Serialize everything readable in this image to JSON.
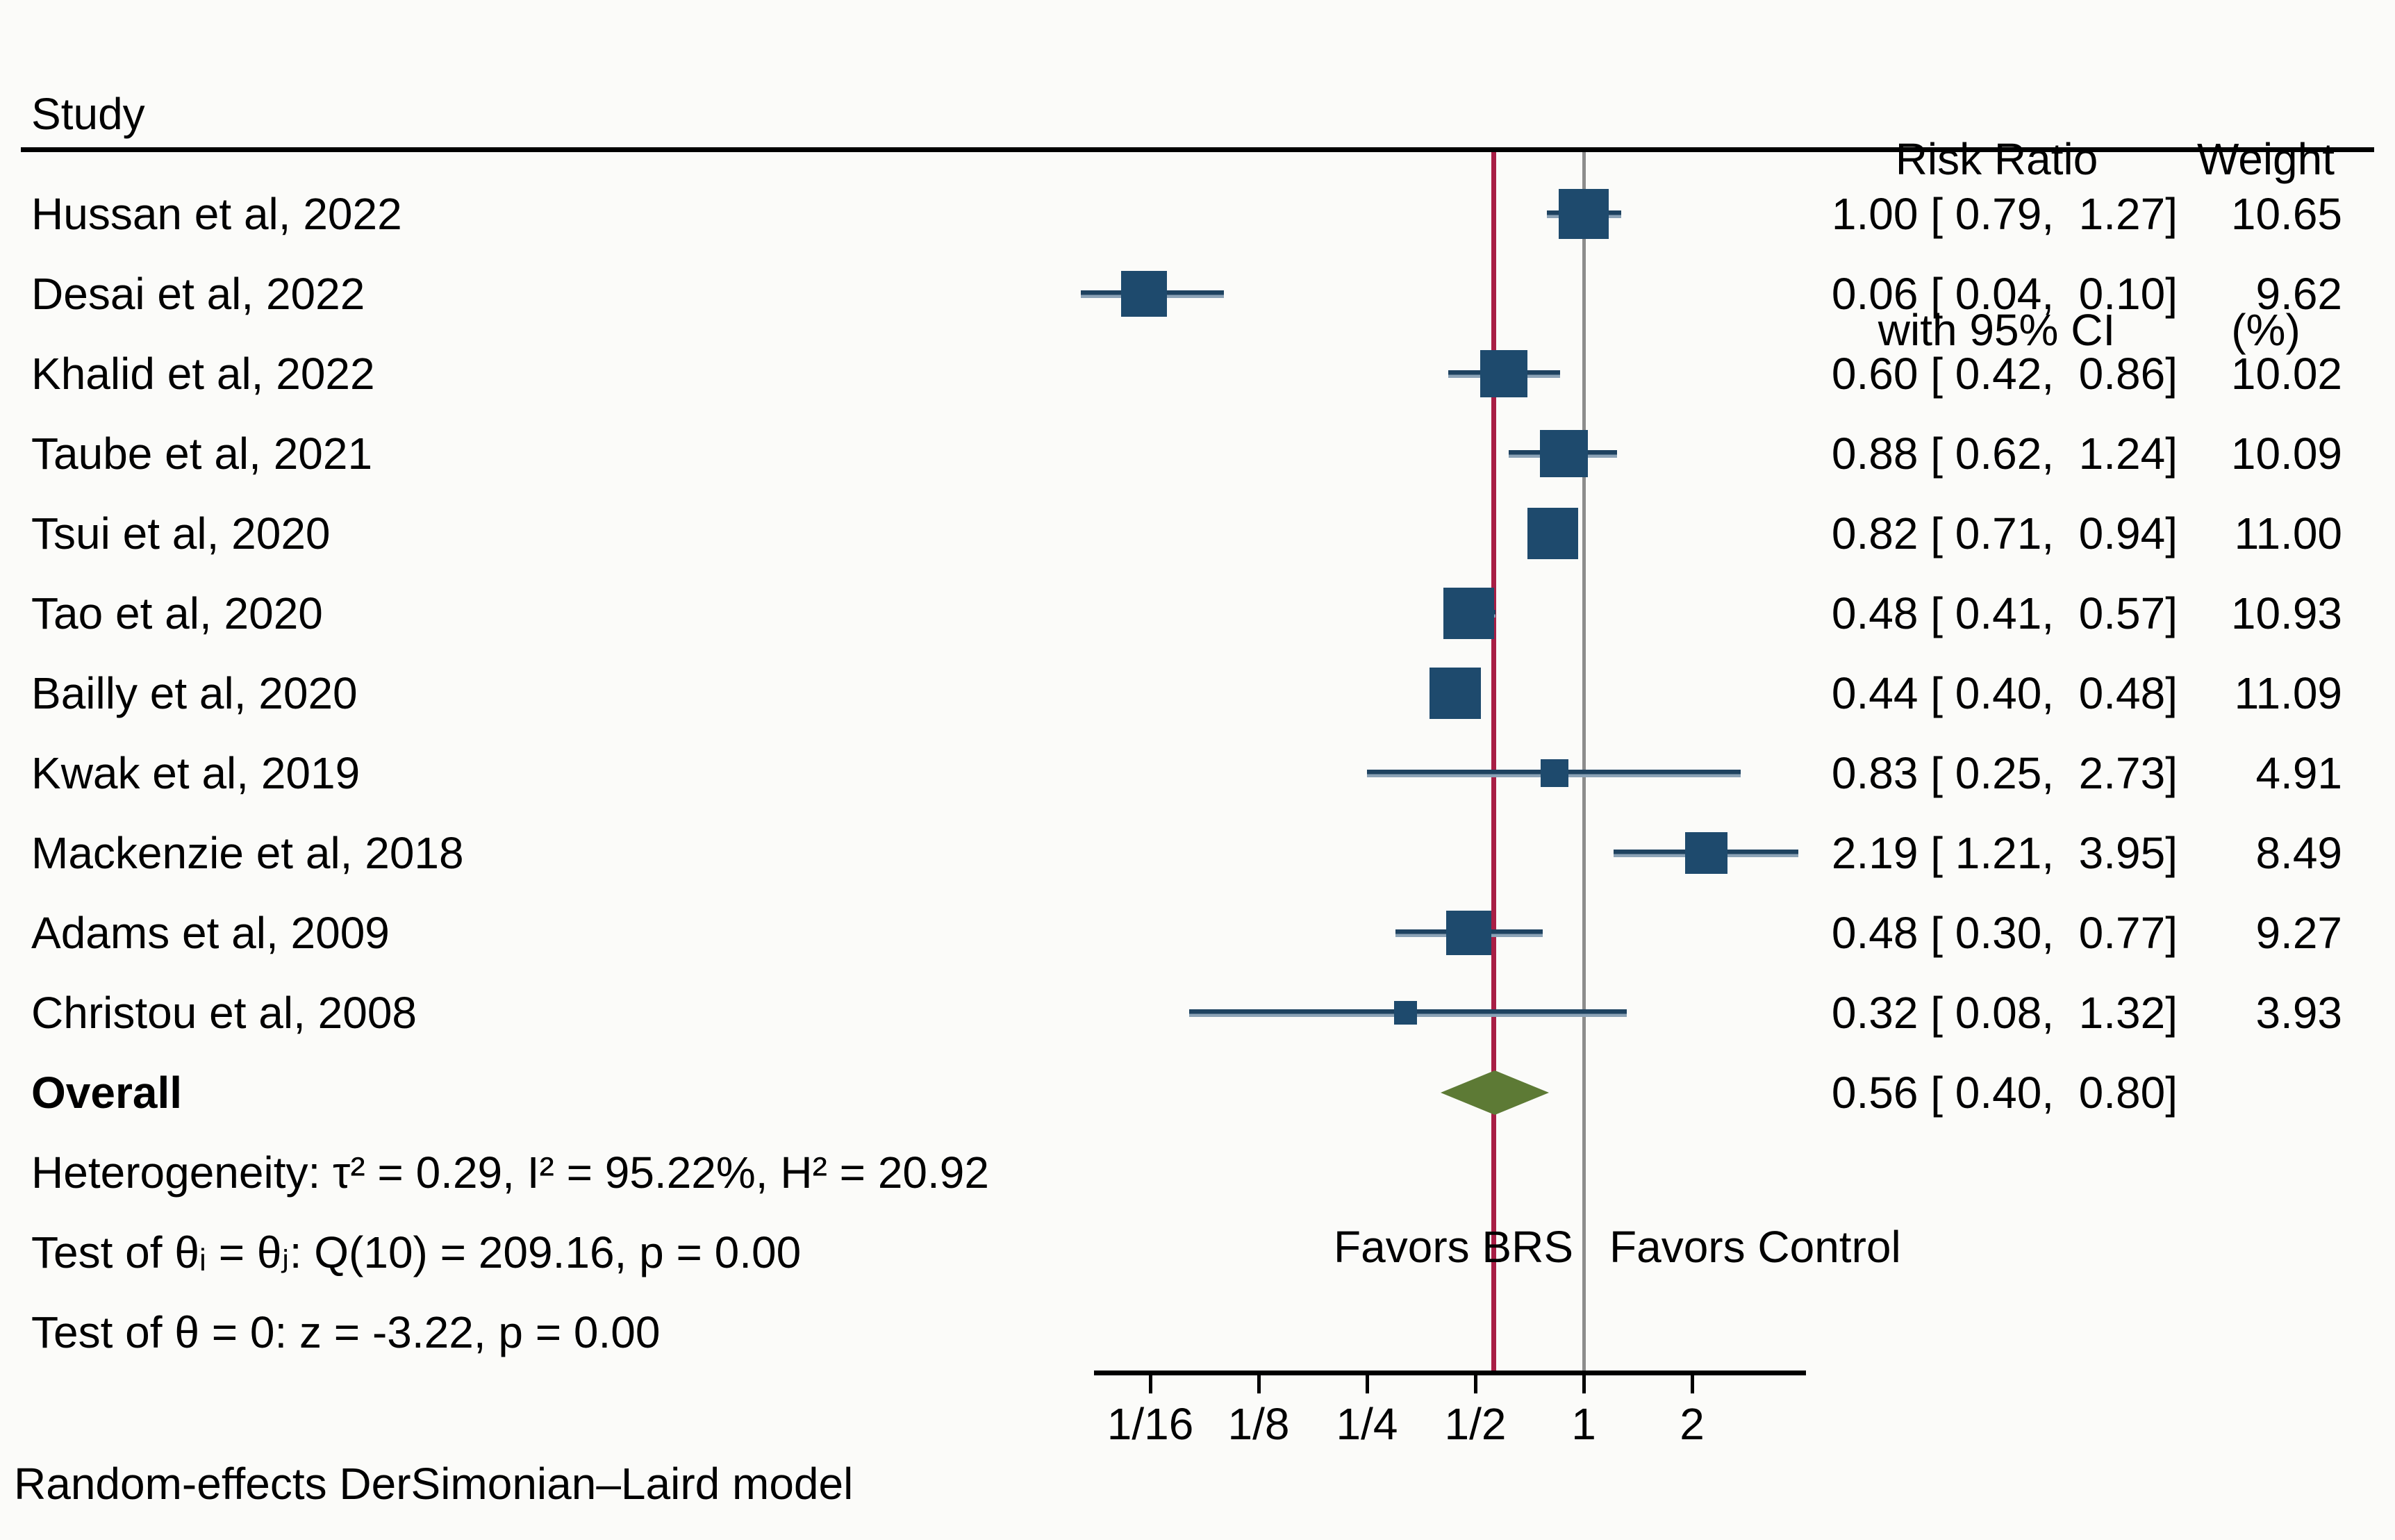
{
  "header": {
    "study_col": "Study",
    "rr_col_line1": "Risk Ratio",
    "rr_col_line2": "with 95% CI",
    "weight_col_line1": "Weight",
    "weight_col_line2": "(%)"
  },
  "chart_data": {
    "type": "forest",
    "effect_measure": "Risk Ratio",
    "x_scale": "log2",
    "x_ticks": [
      "1/16",
      "1/8",
      "1/4",
      "1/2",
      "1",
      "2"
    ],
    "x_tick_values": [
      0.0625,
      0.125,
      0.25,
      0.5,
      1,
      2
    ],
    "reference_line_value": 1,
    "overall_line_value": 0.56,
    "studies": [
      {
        "name": "Hussan et al, 2022",
        "rr": 1.0,
        "lo": 0.79,
        "hi": 1.27,
        "weight": 10.65,
        "rr_label": "1.00 [ 0.79,  1.27]",
        "weight_label": "10.65"
      },
      {
        "name": "Desai et al, 2022",
        "rr": 0.06,
        "lo": 0.04,
        "hi": 0.1,
        "weight": 9.62,
        "rr_label": "0.06 [ 0.04,  0.10]",
        "weight_label": "9.62"
      },
      {
        "name": "Khalid et al, 2022",
        "rr": 0.6,
        "lo": 0.42,
        "hi": 0.86,
        "weight": 10.02,
        "rr_label": "0.60 [ 0.42,  0.86]",
        "weight_label": "10.02"
      },
      {
        "name": "Taube et al, 2021",
        "rr": 0.88,
        "lo": 0.62,
        "hi": 1.24,
        "weight": 10.09,
        "rr_label": "0.88 [ 0.62,  1.24]",
        "weight_label": "10.09"
      },
      {
        "name": "Tsui et al, 2020",
        "rr": 0.82,
        "lo": 0.71,
        "hi": 0.94,
        "weight": 11.0,
        "rr_label": "0.82 [ 0.71,  0.94]",
        "weight_label": "11.00"
      },
      {
        "name": "Tao et al, 2020",
        "rr": 0.48,
        "lo": 0.41,
        "hi": 0.57,
        "weight": 10.93,
        "rr_label": "0.48 [ 0.41,  0.57]",
        "weight_label": "10.93"
      },
      {
        "name": "Bailly et al, 2020",
        "rr": 0.44,
        "lo": 0.4,
        "hi": 0.48,
        "weight": 11.09,
        "rr_label": "0.44 [ 0.40,  0.48]",
        "weight_label": "11.09"
      },
      {
        "name": "Kwak et al, 2019",
        "rr": 0.83,
        "lo": 0.25,
        "hi": 2.73,
        "weight": 4.91,
        "rr_label": "0.83 [ 0.25,  2.73]",
        "weight_label": "4.91"
      },
      {
        "name": "Mackenzie et al, 2018",
        "rr": 2.19,
        "lo": 1.21,
        "hi": 3.95,
        "weight": 8.49,
        "rr_label": "2.19 [ 1.21,  3.95]",
        "weight_label": "8.49"
      },
      {
        "name": "Adams et al, 2009",
        "rr": 0.48,
        "lo": 0.3,
        "hi": 0.77,
        "weight": 9.27,
        "rr_label": "0.48 [ 0.30,  0.77]",
        "weight_label": "9.27"
      },
      {
        "name": "Christou et al, 2008",
        "rr": 0.32,
        "lo": 0.08,
        "hi": 1.32,
        "weight": 3.93,
        "rr_label": "0.32 [ 0.08,  1.32]",
        "weight_label": "3.93"
      }
    ],
    "overall": {
      "label": "Overall",
      "rr": 0.56,
      "lo": 0.4,
      "hi": 0.8,
      "rr_label": "0.56 [ 0.40,  0.80]"
    },
    "favors_left": "Favors BRS",
    "favors_right": "Favors Control"
  },
  "stats": {
    "heterogeneity": "Heterogeneity: τ² = 0.29, I² = 95.22%, H² = 20.92",
    "test_thetas": "Test of θᵢ = θⱼ: Q(10) = 209.16, p = 0.00",
    "test_zero": "Test of θ = 0: z = -3.22, p = 0.00"
  },
  "footer": {
    "model_note": "Random-effects DerSimonian–Laird model"
  },
  "colors": {
    "marker": "#1e4a6d",
    "ci_line": "#1e4260",
    "diamond": "#5d7a35",
    "overall_line": "#a81e45",
    "reference_line": "#8c8c8c",
    "axis": "#000000"
  }
}
